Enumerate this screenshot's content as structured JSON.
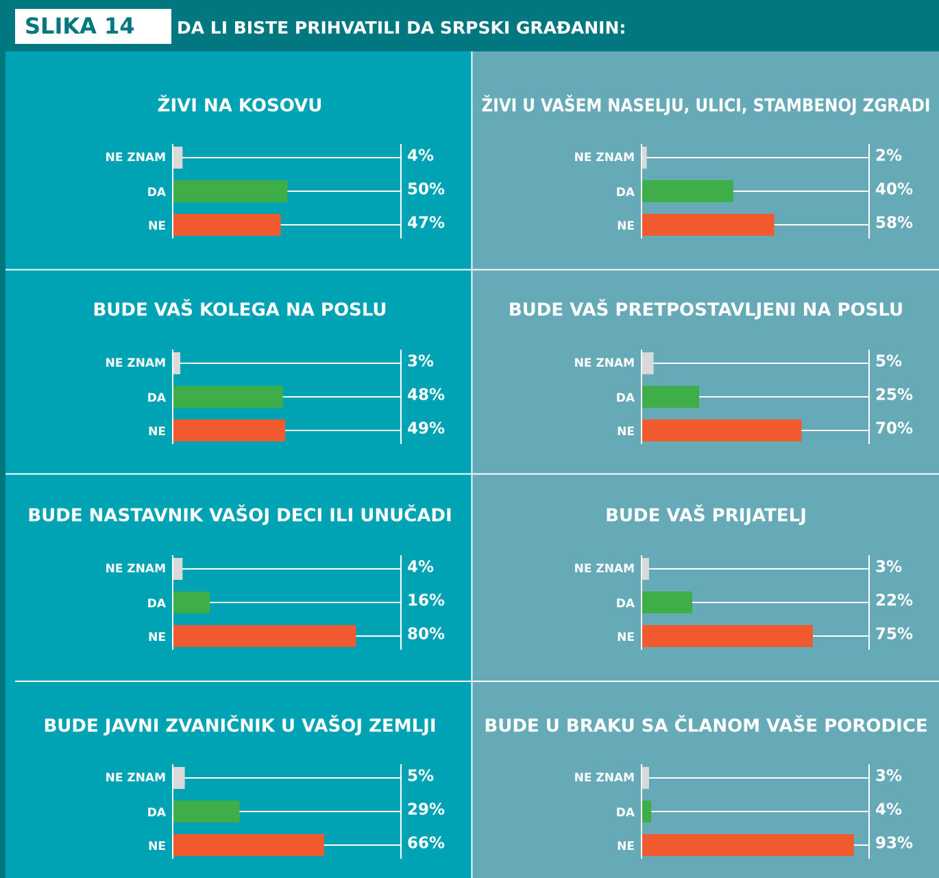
{
  "header": {
    "label": "SLIKA 14",
    "title": "DA LI BISTE PRIHVATILI DA SRPSKI GRAĐANIN:"
  },
  "chart_data": [
    {
      "type": "hbar",
      "title": "ŽIVI NA KOSOVU",
      "categories": [
        "NE ZNAM",
        "DA",
        "NE"
      ],
      "values": [
        4,
        50,
        47
      ],
      "value_labels": [
        "4%",
        "50%",
        "47%"
      ],
      "colors": [
        "#d9d9d9",
        "#3fae49",
        "#f15a2e"
      ],
      "xlim": [
        0,
        100
      ]
    },
    {
      "type": "hbar",
      "title": "ŽIVI U VAŠEM NASELJU, ULICI, STAMBENOJ ZGRADI",
      "categories": [
        "NE ZNAM",
        "DA",
        "NE"
      ],
      "values": [
        2,
        40,
        58
      ],
      "value_labels": [
        "2%",
        "40%",
        "58%"
      ],
      "colors": [
        "#d9d9d9",
        "#3fae49",
        "#f15a2e"
      ],
      "xlim": [
        0,
        100
      ]
    },
    {
      "type": "hbar",
      "title": "BUDE VAŠ KOLEGA NA POSLU",
      "categories": [
        "NE ZNAM",
        "DA",
        "NE"
      ],
      "values": [
        3,
        48,
        49
      ],
      "value_labels": [
        "3%",
        "48%",
        "49%"
      ],
      "colors": [
        "#d9d9d9",
        "#3fae49",
        "#f15a2e"
      ],
      "xlim": [
        0,
        100
      ]
    },
    {
      "type": "hbar",
      "title": "BUDE VAŠ PRETPOSTAVLJENI NA POSLU",
      "categories": [
        "NE ZNAM",
        "DA",
        "NE"
      ],
      "values": [
        5,
        25,
        70
      ],
      "value_labels": [
        "5%",
        "25%",
        "70%"
      ],
      "colors": [
        "#d9d9d9",
        "#3fae49",
        "#f15a2e"
      ],
      "xlim": [
        0,
        100
      ]
    },
    {
      "type": "hbar",
      "title": "BUDE NASTAVNIK VAŠOJ DECI ILI UNUČADI",
      "categories": [
        "NE ZNAM",
        "DA",
        "NE"
      ],
      "values": [
        4,
        16,
        80
      ],
      "value_labels": [
        "4%",
        "16%",
        "80%"
      ],
      "colors": [
        "#d9d9d9",
        "#3fae49",
        "#f15a2e"
      ],
      "xlim": [
        0,
        100
      ]
    },
    {
      "type": "hbar",
      "title": "BUDE VAŠ PRIJATELJ",
      "categories": [
        "NE ZNAM",
        "DA",
        "NE"
      ],
      "values": [
        3,
        22,
        75
      ],
      "value_labels": [
        "3%",
        "22%",
        "75%"
      ],
      "colors": [
        "#d9d9d9",
        "#3fae49",
        "#f15a2e"
      ],
      "xlim": [
        0,
        100
      ]
    },
    {
      "type": "hbar",
      "title": "BUDE JAVNI ZVANIČNIK U VAŠOJ ZEMLJI",
      "categories": [
        "NE ZNAM",
        "DA",
        "NE"
      ],
      "values": [
        5,
        29,
        66
      ],
      "value_labels": [
        "5%",
        "29%",
        "66%"
      ],
      "colors": [
        "#d9d9d9",
        "#3fae49",
        "#f15a2e"
      ],
      "xlim": [
        0,
        100
      ]
    },
    {
      "type": "hbar",
      "title": "BUDE U BRAKU SA ČLANOM VAŠE PORODICE",
      "categories": [
        "NE ZNAM",
        "DA",
        "NE"
      ],
      "values": [
        3,
        4,
        93
      ],
      "value_labels": [
        "3%",
        "4%",
        "93%"
      ],
      "colors": [
        "#d9d9d9",
        "#3fae49",
        "#f15a2e"
      ],
      "xlim": [
        0,
        100
      ]
    }
  ]
}
